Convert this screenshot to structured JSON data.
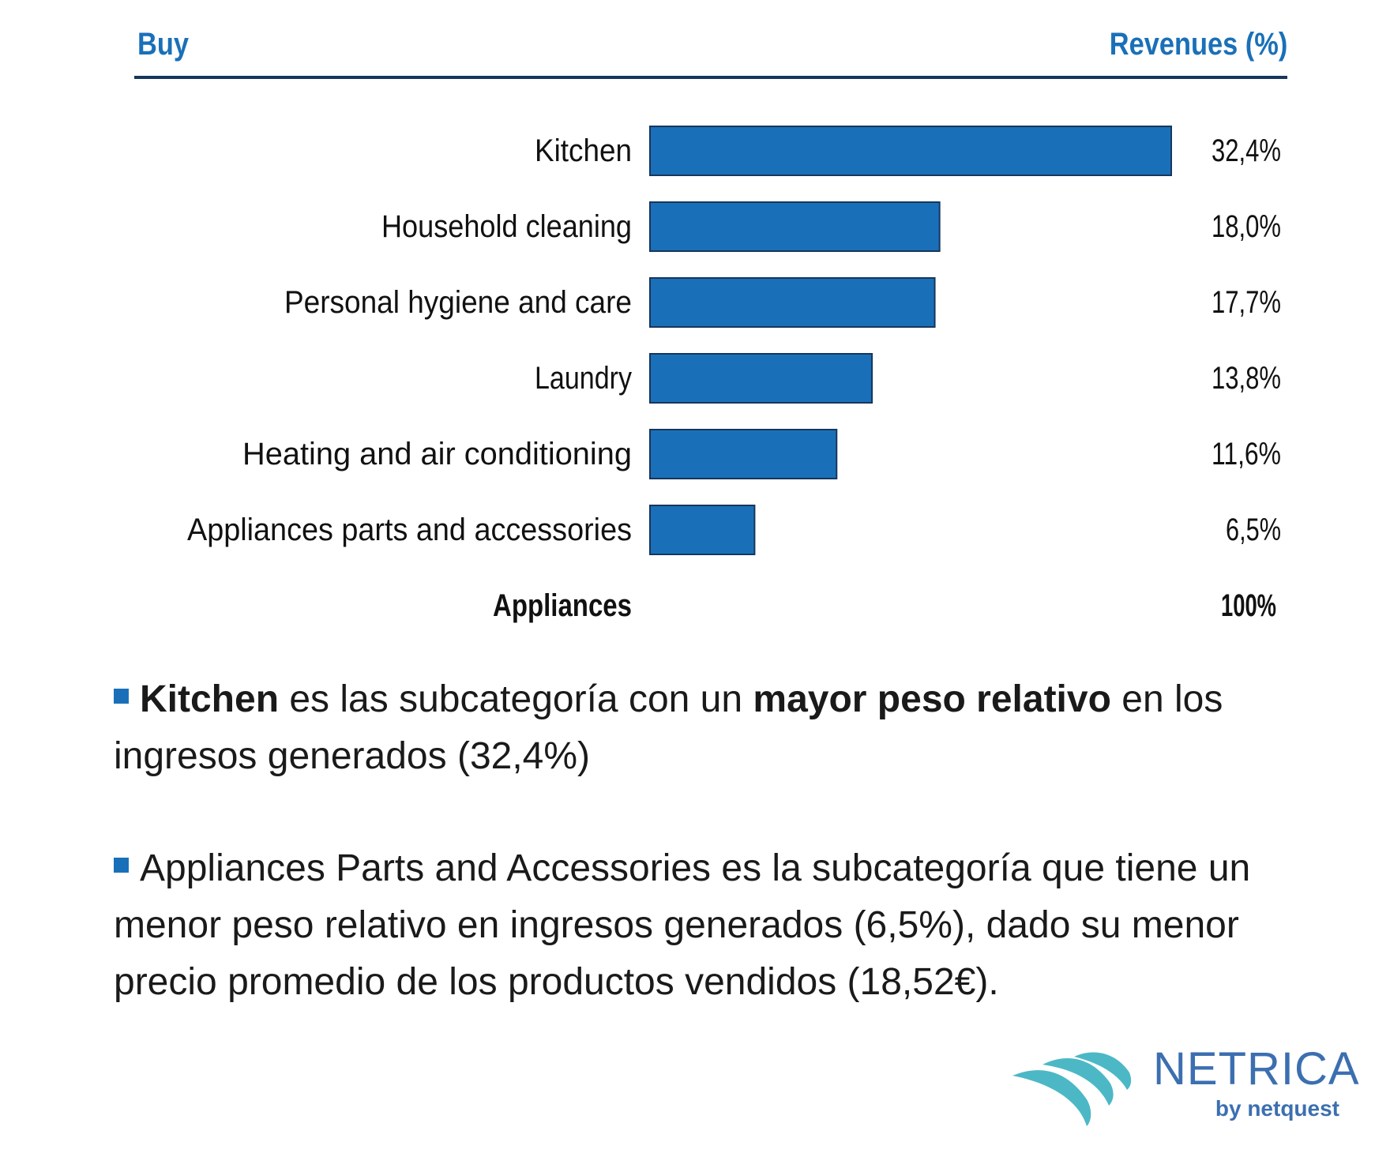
{
  "header": {
    "left": "Buy",
    "right": "Revenues (%)"
  },
  "chart_data": {
    "type": "bar",
    "orientation": "horizontal",
    "categories": [
      "Kitchen",
      "Household cleaning",
      "Personal hygiene and care",
      "Laundry",
      "Heating and air conditioning",
      "Appliances parts and accessories"
    ],
    "values": [
      32.4,
      18.0,
      17.7,
      13.8,
      11.6,
      6.5
    ],
    "value_labels": [
      "32,4%",
      "18,0%",
      "17,7%",
      "13,8%",
      "11,6%",
      "6,5%"
    ],
    "total_label": "Appliances",
    "total_value": "100%",
    "xlim": [
      0,
      32.4
    ],
    "bar_color": "#1a70b8",
    "grid": false
  },
  "notes": [
    {
      "parts": [
        {
          "text": "Kitchen",
          "bold": true
        },
        {
          "text": " es las subcategoría con un ",
          "bold": false
        },
        {
          "text": "mayor peso relativo",
          "bold": true
        },
        {
          "text": " en los ingresos generados (32,4%)",
          "bold": false
        }
      ]
    },
    {
      "parts": [
        {
          "text": "Appliances Parts and Accessories es la subcategoría que tiene un menor peso relativo en ingresos generados (6,5%), dado su menor precio promedio de los productos vendidos (18,52€).",
          "bold": false
        }
      ]
    }
  ],
  "logo": {
    "name": "NETRICA",
    "tagline": "by netquest",
    "icon": "netrica-wave-logo",
    "color": "#3c6fb0"
  }
}
